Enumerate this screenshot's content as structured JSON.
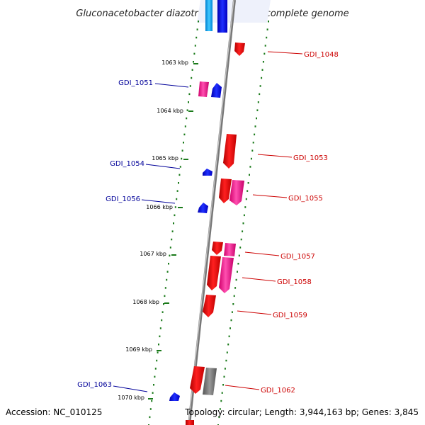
{
  "title": "Gluconacetobacter diazotrophicus PAI 5, complete genome",
  "footer": {
    "accession": "Accession: NC_010125",
    "topology": "Topology: circular; Length: 3,944,163 bp; Genes: 3,845"
  },
  "colors": {
    "forward_gene": "#f00000",
    "forward_gene_alt": "#ff1493",
    "reverse_gene": "#0000ff",
    "reverse_gene_alt": "#00aaff",
    "gray_gene": "#777777",
    "label_forward": "#cc0000",
    "label_reverse": "#000099",
    "tick": "#1a7a1a",
    "backbone": "#999999"
  },
  "kbp_ticks": [
    "1063 kbp",
    "1064 kbp",
    "1065 kbp",
    "1066 kbp",
    "1067 kbp",
    "1068 kbp",
    "1069 kbp",
    "1070 kbp"
  ],
  "gene_labels_forward": [
    "GDI_1048",
    "GDI_1053",
    "GDI_1055",
    "GDI_1057",
    "GDI_1058",
    "GDI_1059",
    "GDI_1062"
  ],
  "gene_labels_reverse": [
    "GDI_1051",
    "GDI_1054",
    "GDI_1056",
    "GDI_1063"
  ]
}
